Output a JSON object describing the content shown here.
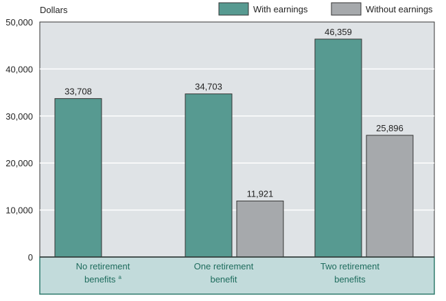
{
  "chart_data": {
    "type": "bar",
    "ylabel": "Dollars",
    "ylim": [
      0,
      50000
    ],
    "yticks": [
      "0",
      "10,000",
      "20,000",
      "30,000",
      "40,000",
      "50,000"
    ],
    "ytick_values": [
      0,
      10000,
      20000,
      30000,
      40000,
      50000
    ],
    "grid": true,
    "legend_position": "top-right",
    "categories": [
      {
        "line1": "No retirement",
        "line2": "benefits",
        "sup": "a"
      },
      {
        "line1": "One retirement",
        "line2": "benefit",
        "sup": ""
      },
      {
        "line1": "Two retirement",
        "line2": "benefits",
        "sup": ""
      }
    ],
    "series": [
      {
        "name": "With earnings",
        "color": "#579a91",
        "values": [
          33708,
          34703,
          46359
        ],
        "labels": [
          "33,708",
          "34,703",
          "46,359"
        ]
      },
      {
        "name": "Without earnings",
        "color": "#a6a9ac",
        "values": [
          null,
          11921,
          25896
        ],
        "labels": [
          "",
          "11,921",
          "25,896"
        ]
      }
    ]
  }
}
